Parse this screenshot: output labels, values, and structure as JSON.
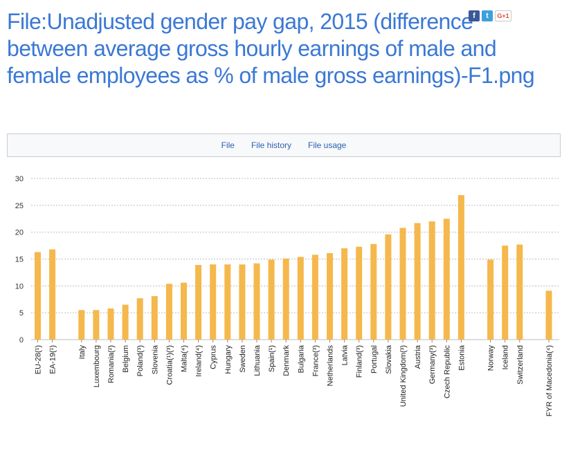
{
  "page": {
    "title": "File:Unadjusted gender pay gap, 2015 (difference between average gross hourly earnings of male and female employees as % of male gross earnings)-F1.png"
  },
  "social": {
    "facebook": "f",
    "twitter": "t",
    "googleplus": "G+1"
  },
  "tabs": [
    "File",
    "File history",
    "File usage"
  ],
  "colors": {
    "bar": "#f5b84d",
    "title": "#3a78d4",
    "grid": "#bdbdbd"
  },
  "chart_data": {
    "type": "bar",
    "title": "",
    "xlabel": "",
    "ylabel": "",
    "ylim": [
      0,
      30
    ],
    "yticks": [
      0,
      5,
      10,
      15,
      20,
      25,
      30
    ],
    "grid": true,
    "legend": "none",
    "groups": [
      {
        "categories": [
          "EU-28(¹)",
          "EA-19(¹)"
        ],
        "values": [
          16.3,
          16.8
        ]
      },
      {
        "categories": [
          "Italy",
          "Luxembourg",
          "Romania(²)",
          "Belgium",
          "Poland(³)",
          "Slovenia",
          "Croatia(¹)(³)",
          "Malta(⁴)",
          "Ireland(⁴)",
          "Cyprus",
          "Hungary",
          "Sweden",
          "Lithuania",
          "Spain(¹)",
          "Denmark",
          "Bulgaria",
          "France(³)",
          "Netherlands",
          "Latvia",
          "Finland(³)",
          "Portugal",
          "Slovakia",
          "United Kingdom(³)",
          "Austria",
          "Germany(³)",
          "Czech Republic",
          "Estonia"
        ],
        "values": [
          5.5,
          5.5,
          5.8,
          6.5,
          7.7,
          8.1,
          10.4,
          10.6,
          13.9,
          14.0,
          14.0,
          14.0,
          14.2,
          14.9,
          15.1,
          15.4,
          15.8,
          16.1,
          17.0,
          17.3,
          17.8,
          19.6,
          20.8,
          21.7,
          22.0,
          22.5,
          26.9
        ]
      },
      {
        "categories": [
          "Norway",
          "Iceland",
          "Switzerland"
        ],
        "values": [
          14.9,
          17.5,
          17.7
        ]
      },
      {
        "categories": [
          "FYR of Macedonia(⁴)"
        ],
        "values": [
          9.1
        ]
      }
    ]
  }
}
